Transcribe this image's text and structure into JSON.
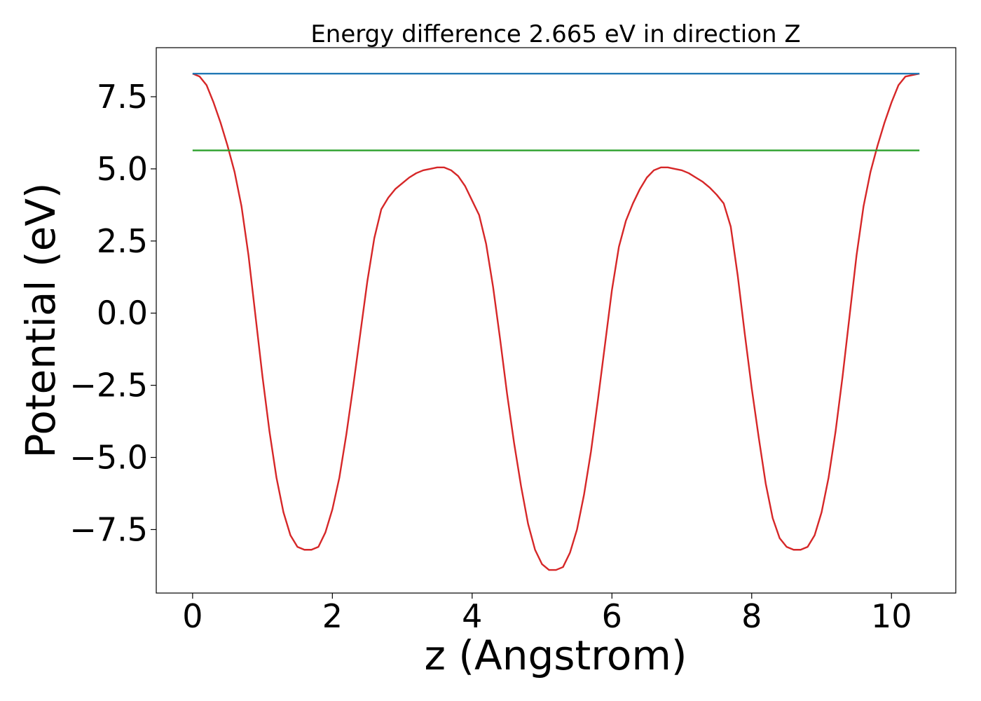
{
  "chart_data": {
    "type": "line",
    "title": "Energy difference 2.665 eV in direction Z",
    "xlabel": "z (Angstrom)",
    "ylabel": "Potential (eV)",
    "xlim": [
      -0.52,
      10.92
    ],
    "ylim": [
      -9.7,
      9.2
    ],
    "xticks": [
      0,
      2,
      4,
      6,
      8,
      10
    ],
    "xtick_labels": [
      "0",
      "2",
      "4",
      "6",
      "8",
      "10"
    ],
    "yticks": [
      -7.5,
      -5.0,
      -2.5,
      0.0,
      2.5,
      5.0,
      7.5
    ],
    "ytick_labels": [
      "−7.5",
      "−5.0",
      "−2.5",
      "0.0",
      "2.5",
      "5.0",
      "7.5"
    ],
    "grid": false,
    "series": [
      {
        "color": "#d62728",
        "x": [
          0.0,
          0.1,
          0.2,
          0.3,
          0.4,
          0.5,
          0.6,
          0.7,
          0.8,
          0.9,
          1.0,
          1.1,
          1.2,
          1.3,
          1.4,
          1.5,
          1.6,
          1.7,
          1.8,
          1.9,
          2.0,
          2.1,
          2.2,
          2.3,
          2.4,
          2.5,
          2.6,
          2.7,
          2.8,
          2.9,
          3.0,
          3.1,
          3.2,
          3.3,
          3.4,
          3.5,
          3.6,
          3.7,
          3.8,
          3.9,
          4.0,
          4.1,
          4.2,
          4.3,
          4.4,
          4.5,
          4.6,
          4.7,
          4.8,
          4.9,
          5.0,
          5.1,
          5.2,
          5.3,
          5.4,
          5.5,
          5.6,
          5.7,
          5.8,
          5.9,
          6.0,
          6.1,
          6.2,
          6.3,
          6.4,
          6.5,
          6.6,
          6.7,
          6.8,
          6.9,
          7.0,
          7.1,
          7.2,
          7.3,
          7.4,
          7.5,
          7.6,
          7.7,
          7.8,
          7.9,
          8.0,
          8.1,
          8.2,
          8.3,
          8.4,
          8.5,
          8.6,
          8.7,
          8.8,
          8.9,
          9.0,
          9.1,
          9.2,
          9.3,
          9.4,
          9.5,
          9.6,
          9.7,
          9.8,
          9.9,
          10.0,
          10.1,
          10.2,
          10.3,
          10.4
        ],
        "y": [
          8.3,
          8.2,
          7.9,
          7.3,
          6.6,
          5.8,
          4.9,
          3.7,
          2.0,
          -0.1,
          -2.2,
          -4.1,
          -5.7,
          -6.9,
          -7.7,
          -8.1,
          -8.2,
          -8.2,
          -8.1,
          -7.6,
          -6.8,
          -5.7,
          -4.2,
          -2.5,
          -0.7,
          1.1,
          2.6,
          3.6,
          4.0,
          4.3,
          4.5,
          4.7,
          4.85,
          4.95,
          5.0,
          5.05,
          5.05,
          4.95,
          4.75,
          4.4,
          3.9,
          3.4,
          2.4,
          0.9,
          -0.9,
          -2.8,
          -4.5,
          -6.0,
          -7.3,
          -8.2,
          -8.7,
          -8.9,
          -8.9,
          -8.8,
          -8.3,
          -7.5,
          -6.3,
          -4.8,
          -3.0,
          -1.1,
          0.8,
          2.3,
          3.2,
          3.8,
          4.3,
          4.7,
          4.95,
          5.05,
          5.05,
          5.0,
          4.95,
          4.85,
          4.7,
          4.55,
          4.35,
          4.1,
          3.8,
          3.0,
          1.3,
          -0.7,
          -2.6,
          -4.3,
          -5.9,
          -7.1,
          -7.8,
          -8.1,
          -8.2,
          -8.2,
          -8.1,
          -7.7,
          -6.9,
          -5.7,
          -4.1,
          -2.2,
          -0.1,
          2.0,
          3.7,
          4.9,
          5.8,
          6.6,
          7.3,
          7.9,
          8.2,
          8.25,
          8.3
        ]
      },
      {
        "color": "#1f77b4",
        "x": [
          0.0,
          10.4
        ],
        "y": [
          8.3,
          8.3
        ]
      },
      {
        "color": "#2ca02c",
        "x": [
          0.0,
          10.4
        ],
        "y": [
          5.64,
          5.64
        ]
      }
    ]
  }
}
